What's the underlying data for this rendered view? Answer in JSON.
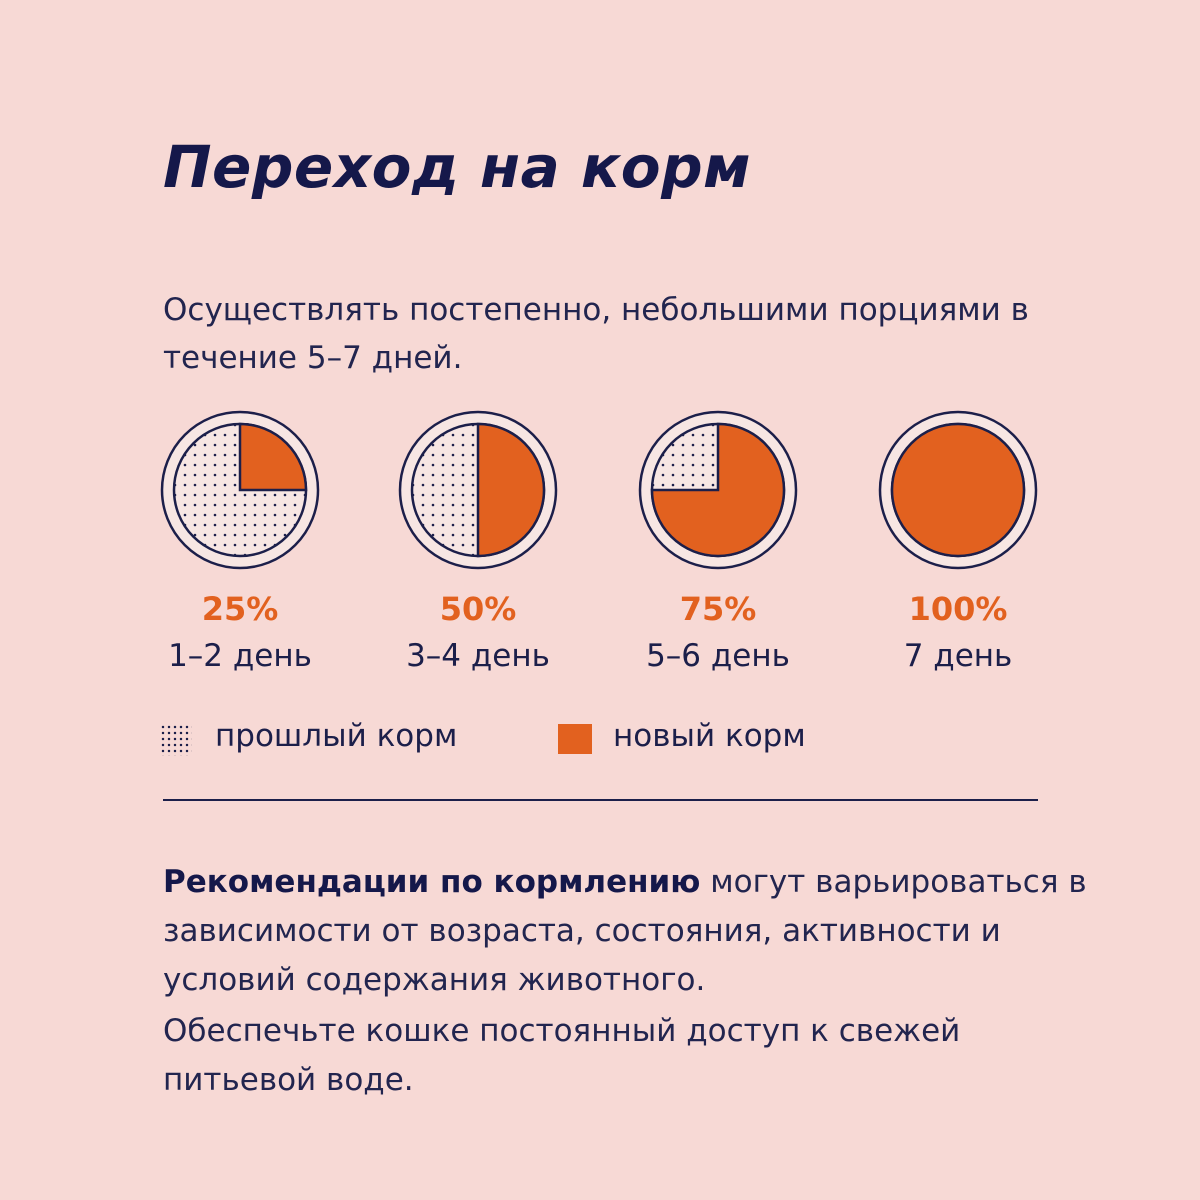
{
  "title": "Переход на корм",
  "intro": "Осуществлять постепенно, небольшими порциями в течение 5–7 дней.",
  "colors": {
    "background": "#f7d9d5",
    "old_food": "#f7e6e3",
    "new_food": "#e2611f",
    "navy": "#1c1f4a"
  },
  "steps": [
    {
      "fraction": 0.25,
      "percent": "25%",
      "days": "1–2 день"
    },
    {
      "fraction": 0.5,
      "percent": "50%",
      "days": "3–4 день"
    },
    {
      "fraction": 0.75,
      "percent": "75%",
      "days": "5–6 день"
    },
    {
      "fraction": 1.0,
      "percent": "100%",
      "days": "7 день"
    }
  ],
  "legend": {
    "old": "прошлый корм",
    "new": "новый корм"
  },
  "recommendation": {
    "bold": "Рекомендации по кормлению",
    "rest": " могут варьироваться в зависимости от возраста, состояния, активности и условий содержания животного."
  },
  "water_note": "Обеспечьте кошке постоянный доступ к свежей питьевой воде."
}
